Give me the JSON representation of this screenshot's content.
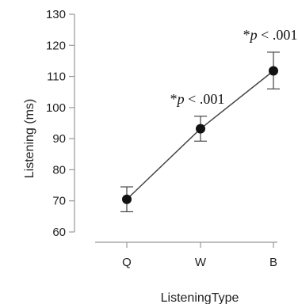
{
  "chart_data": {
    "type": "line",
    "categories": [
      "Q",
      "W",
      "B"
    ],
    "values": [
      70.5,
      93.2,
      111.8
    ],
    "error_low": [
      66.5,
      89.2,
      106.0
    ],
    "error_high": [
      74.5,
      97.2,
      117.8
    ],
    "xlabel": "ListeningType",
    "ylabel": "Listening (ms)",
    "ylim": [
      60,
      130
    ],
    "yticks": [
      60,
      70,
      80,
      90,
      100,
      110,
      120,
      130
    ],
    "grid": false,
    "annotations": [
      {
        "category": "W",
        "star": "*",
        "p": "p",
        "rest": " < .001"
      },
      {
        "category": "B",
        "star": "*",
        "p": "p",
        "rest": " < .001"
      }
    ],
    "colors": {
      "line": "#444444",
      "marker": "#111111",
      "axis": "#999999"
    }
  }
}
